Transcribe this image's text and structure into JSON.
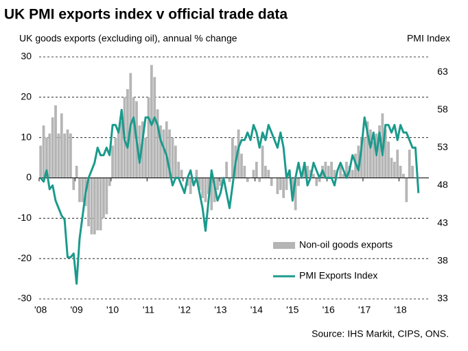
{
  "chart_data": {
    "type": "bar-line",
    "title": "UK PMI exports index v official trade data",
    "y_label": "UK goods exports (excluding oil), annual % change",
    "y2_label": "PMI Index",
    "source": "Source: IHS Markit, CIPS, ONS.",
    "categories": [
      "'08",
      null,
      null,
      null,
      null,
      null,
      null,
      null,
      null,
      null,
      null,
      null,
      "'09",
      null,
      null,
      null,
      null,
      null,
      null,
      null,
      null,
      null,
      null,
      null,
      "'10",
      null,
      null,
      null,
      null,
      null,
      null,
      null,
      null,
      null,
      null,
      null,
      "'11",
      null,
      null,
      null,
      null,
      null,
      null,
      null,
      null,
      null,
      null,
      null,
      "'12",
      null,
      null,
      null,
      null,
      null,
      null,
      null,
      null,
      null,
      null,
      null,
      "'13",
      null,
      null,
      null,
      null,
      null,
      null,
      null,
      null,
      null,
      null,
      null,
      "'14",
      null,
      null,
      null,
      null,
      null,
      null,
      null,
      null,
      null,
      null,
      null,
      "'15",
      null,
      null,
      null,
      null,
      null,
      null,
      null,
      null,
      null,
      null,
      null,
      "'16",
      null,
      null,
      null,
      null,
      null,
      null,
      null,
      null,
      null,
      null,
      null,
      "'17",
      null,
      null,
      null,
      null,
      null,
      null,
      null,
      null,
      null,
      null,
      null,
      "'18",
      null,
      null,
      null,
      null,
      null,
      null
    ],
    "series": [
      {
        "name": "Non-oil goods exports",
        "type": "bar",
        "color": "#b5b5b5",
        "values": [
          8,
          13,
          10,
          11,
          15,
          18,
          11,
          16,
          11,
          12,
          11,
          -3,
          3,
          -6,
          -6,
          -7,
          -12,
          -14,
          -14,
          -13,
          -13,
          -10,
          -9,
          -2,
          8,
          10,
          12,
          14,
          20,
          22,
          26,
          20,
          19,
          13,
          14,
          10,
          20,
          28,
          25,
          17,
          13,
          12,
          14,
          12,
          10,
          8,
          4,
          2,
          0,
          -2,
          -4,
          0,
          2,
          -3,
          -5,
          -6,
          -4,
          -8,
          -6,
          -3,
          -2,
          0,
          4,
          -1,
          10,
          8,
          12,
          6,
          3,
          -1,
          0,
          2,
          4,
          -1,
          8,
          3,
          2,
          -2,
          0,
          -4,
          -3,
          -5,
          -3,
          2,
          -3,
          -8,
          -2,
          1,
          4,
          3,
          2,
          1,
          -2,
          -1,
          3,
          4,
          3,
          4,
          2,
          0,
          3,
          1,
          4,
          3,
          2,
          6,
          8,
          10,
          10,
          14,
          12,
          9,
          11,
          13,
          16,
          12,
          9,
          5,
          4,
          7,
          3,
          1,
          -6,
          7,
          3,
          0,
          0
        ]
      },
      {
        "name": "PMI Exports Index",
        "type": "line",
        "axis": "y2",
        "color": "#1a9a8c",
        "values": [
          49,
          48.5,
          50,
          47.5,
          48,
          46,
          45,
          44,
          43.5,
          38.5,
          38.5,
          39,
          35,
          41,
          44,
          47,
          49,
          50,
          51,
          53,
          52,
          52,
          53,
          52,
          56,
          56,
          55,
          58,
          54,
          53,
          56,
          57,
          54,
          51,
          54,
          57,
          57,
          56,
          57,
          56,
          54,
          53,
          52,
          50,
          48,
          49,
          49,
          48,
          47,
          49,
          50,
          48,
          49,
          47,
          45,
          42,
          46,
          50,
          48,
          46,
          47,
          49,
          47,
          45,
          48,
          51,
          53,
          54,
          54,
          55,
          54,
          56,
          55,
          53,
          55,
          54,
          56,
          55,
          54,
          53,
          55,
          53,
          49,
          50,
          46,
          49,
          51,
          49,
          51,
          48,
          49,
          51,
          50,
          49,
          50,
          49,
          49,
          49,
          48,
          50,
          51,
          50,
          49,
          50,
          52,
          51,
          50,
          53,
          57,
          55,
          53,
          55,
          52,
          55,
          52,
          56,
          56,
          55,
          56,
          54,
          56,
          55,
          55,
          54,
          53,
          53,
          47
        ]
      }
    ],
    "ylim": [
      -30,
      30
    ],
    "yticks": [
      30,
      20,
      10,
      0,
      -10,
      -20,
      -30
    ],
    "y2lim": [
      33,
      65
    ],
    "y2ticks": [
      63,
      58,
      53,
      48,
      43,
      38,
      33
    ],
    "grid": true,
    "legend": "lower right"
  }
}
